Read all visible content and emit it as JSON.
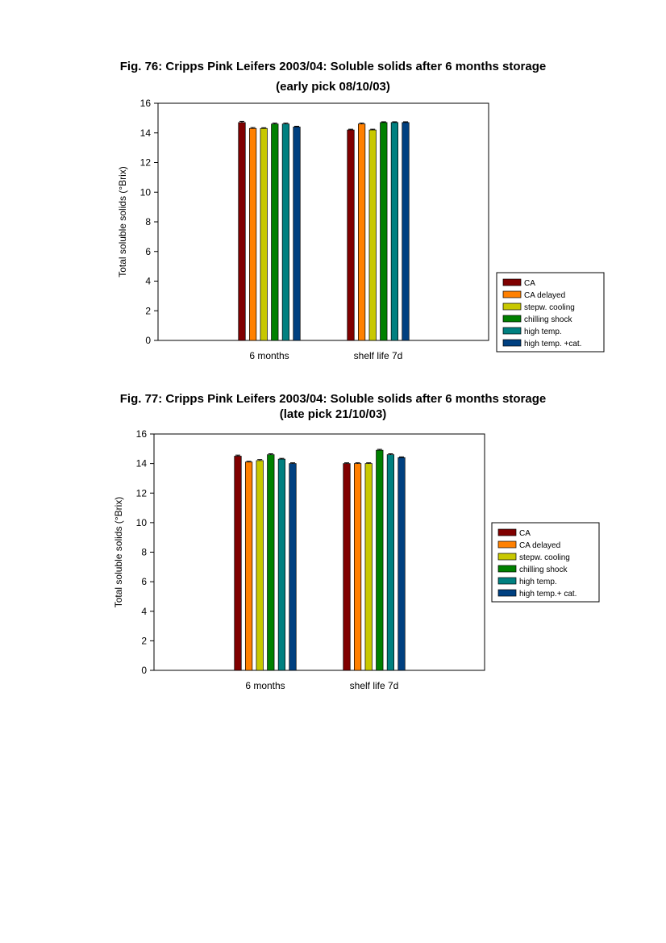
{
  "figures": [
    {
      "title_line1": "Fig. 76: Cripps Pink Leifers 2003/04: Soluble solids after 6 months storage",
      "title_line2": "(early pick 08/10/03)"
    },
    {
      "title_line1": "Fig. 77: Cripps Pink Leifers 2003/04: Soluble solids after 6 months storage",
      "title_line2": "(late pick 21/10/03)"
    }
  ],
  "chart_data": [
    {
      "type": "bar",
      "title": "Fig. 76: Cripps Pink Leifers 2003/04: Soluble solids after 6 months storage (early pick 08/10/03)",
      "xlabel": "",
      "ylabel": "Total soluble solids (°Brix)",
      "ylim": [
        0,
        16
      ],
      "yticks": [
        0,
        2,
        4,
        6,
        8,
        10,
        12,
        14,
        16
      ],
      "categories": [
        "6 months",
        "shelf life 7d"
      ],
      "legend_position": "right",
      "error_bars": true,
      "series": [
        {
          "name": "CA",
          "color": "#800000",
          "values": [
            14.7,
            14.2
          ],
          "errors": [
            0.08,
            0.05
          ]
        },
        {
          "name": "CA delayed",
          "color": "#ff8000",
          "values": [
            14.3,
            14.6
          ],
          "errors": [
            0.06,
            0.06
          ]
        },
        {
          "name": "stepw. cooling",
          "color": "#c8c800",
          "values": [
            14.3,
            14.2
          ],
          "errors": [
            0.05,
            0.05
          ]
        },
        {
          "name": "chilling shock",
          "color": "#008000",
          "values": [
            14.6,
            14.7
          ],
          "errors": [
            0.06,
            0.05
          ]
        },
        {
          "name": "high temp.",
          "color": "#008080",
          "values": [
            14.6,
            14.7
          ],
          "errors": [
            0.06,
            0.05
          ]
        },
        {
          "name": "high temp. +cat.",
          "color": "#004080",
          "values": [
            14.4,
            14.7
          ],
          "errors": [
            0.05,
            0.05
          ]
        }
      ]
    },
    {
      "type": "bar",
      "title": "Fig. 77: Cripps Pink Leifers 2003/04: Soluble solids after 6 months storage (late pick 21/10/03)",
      "xlabel": "",
      "ylabel": "Total soluble solids (°Brix)",
      "ylim": [
        0,
        16
      ],
      "yticks": [
        0,
        2,
        4,
        6,
        8,
        10,
        12,
        14,
        16
      ],
      "categories": [
        "6 months",
        "shelf life 7d"
      ],
      "legend_position": "right",
      "error_bars": true,
      "series": [
        {
          "name": "CA",
          "color": "#800000",
          "values": [
            14.5,
            14.0
          ],
          "errors": [
            0.07,
            0.05
          ]
        },
        {
          "name": "CA delayed",
          "color": "#ff8000",
          "values": [
            14.1,
            14.0
          ],
          "errors": [
            0.05,
            0.05
          ]
        },
        {
          "name": "stepw. cooling",
          "color": "#c8c800",
          "values": [
            14.2,
            14.0
          ],
          "errors": [
            0.07,
            0.05
          ]
        },
        {
          "name": "chilling shock",
          "color": "#008000",
          "values": [
            14.6,
            14.9
          ],
          "errors": [
            0.06,
            0.06
          ]
        },
        {
          "name": "high temp.",
          "color": "#008080",
          "values": [
            14.3,
            14.6
          ],
          "errors": [
            0.05,
            0.06
          ]
        },
        {
          "name": "high temp.+ cat.",
          "color": "#004080",
          "values": [
            14.0,
            14.4
          ],
          "errors": [
            0.05,
            0.05
          ]
        }
      ]
    }
  ]
}
